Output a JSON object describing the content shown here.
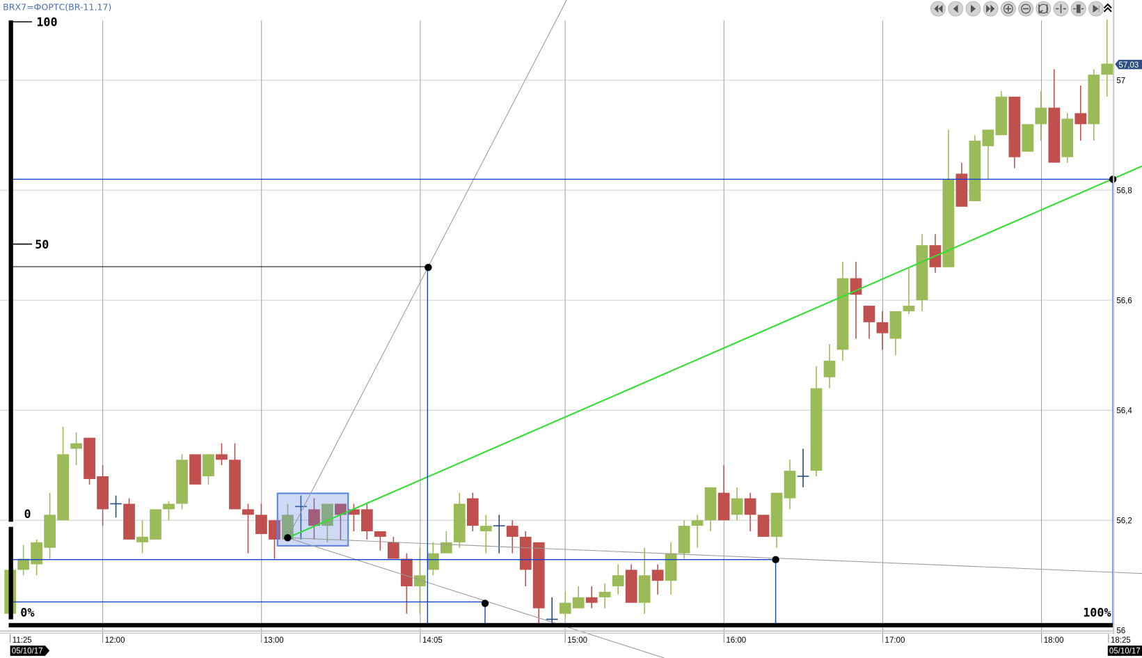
{
  "title": "BRX7=ФОРТС(BR-11.17)",
  "toolbar": {
    "buttons": [
      "rewind-start",
      "step-back",
      "step-forward",
      "fast-forward",
      "zoom-in",
      "zoom-out",
      "zoom-fit",
      "compress",
      "expand",
      "go-to-end"
    ],
    "collapse_icon": "double-chevron-up"
  },
  "overlay_scale": {
    "top_label": "100",
    "mid_label": "50",
    "zero_label": "0",
    "left_pct": "0%",
    "right_pct": "100%"
  },
  "last_price_badge": "57,03",
  "colors": {
    "up": "#9bbb59",
    "down": "#c0504d",
    "doji": "#1f497d",
    "trendline": "#33dd33",
    "level_lines": "#1040d0"
  },
  "date_left": "05/10/17",
  "date_right": "05/10/17",
  "chart_data": {
    "type": "candlestick",
    "title": "",
    "ylim": [
      56,
      57.12
    ],
    "y_ticks": [
      "57",
      "56,8",
      "56,6",
      "56,4",
      "56,2",
      "56"
    ],
    "y_tick_values": [
      57,
      56.8,
      56.6,
      56.4,
      56.2,
      56
    ],
    "x_ticks": [
      "11:25",
      "12:00",
      "13:00",
      "14:05",
      "15:00",
      "16:00",
      "17:00",
      "18:00",
      "18:25"
    ],
    "grid": true,
    "candles": [
      [
        56.03,
        56.12,
        56.02,
        56.11
      ],
      [
        56.11,
        56.155,
        56.1,
        56.13
      ],
      [
        56.12,
        56.165,
        56.1,
        56.16
      ],
      [
        56.15,
        56.25,
        56.13,
        56.21
      ],
      [
        56.2,
        56.37,
        56.2,
        56.32
      ],
      [
        56.33,
        56.36,
        56.3,
        56.34
      ],
      [
        56.35,
        56.35,
        56.265,
        56.275
      ],
      [
        56.28,
        56.3,
        56.19,
        56.22
      ],
      [
        56.23,
        56.245,
        56.205,
        56.23
      ],
      [
        56.23,
        56.24,
        56.165,
        56.165
      ],
      [
        56.16,
        56.2,
        56.14,
        56.17
      ],
      [
        56.165,
        56.22,
        56.165,
        56.22
      ],
      [
        56.22,
        56.235,
        56.2,
        56.23
      ],
      [
        56.23,
        56.32,
        56.22,
        56.31
      ],
      [
        56.32,
        56.32,
        56.265,
        56.265
      ],
      [
        56.28,
        56.32,
        56.265,
        56.32
      ],
      [
        56.32,
        56.34,
        56.3,
        56.31
      ],
      [
        56.31,
        56.34,
        56.22,
        56.22
      ],
      [
        56.22,
        56.23,
        56.14,
        56.21
      ],
      [
        56.21,
        56.23,
        56.175,
        56.175
      ],
      [
        56.2,
        56.2,
        56.13,
        56.165
      ],
      [
        56.165,
        56.23,
        56.165,
        56.21
      ],
      [
        56.225,
        56.245,
        56.165,
        56.225
      ],
      [
        56.22,
        56.24,
        56.165,
        56.19
      ],
      [
        56.19,
        56.23,
        56.16,
        56.23
      ],
      [
        56.23,
        56.23,
        56.165,
        56.21
      ],
      [
        56.22,
        56.23,
        56.18,
        56.21
      ],
      [
        56.22,
        56.23,
        56.165,
        56.18
      ],
      [
        56.18,
        56.18,
        56.145,
        56.17
      ],
      [
        56.16,
        56.17,
        56.13,
        56.13
      ],
      [
        56.13,
        56.14,
        56.03,
        56.08
      ],
      [
        56.08,
        56.15,
        56.03,
        56.1
      ],
      [
        56.11,
        56.16,
        56.1,
        56.14
      ],
      [
        56.14,
        56.18,
        56.14,
        56.16
      ],
      [
        56.16,
        56.25,
        56.15,
        56.23
      ],
      [
        56.24,
        56.25,
        56.18,
        56.19
      ],
      [
        56.18,
        56.21,
        56.14,
        56.19
      ],
      [
        56.19,
        56.21,
        56.14,
        56.19
      ],
      [
        56.19,
        56.2,
        56.14,
        56.17
      ],
      [
        56.17,
        56.18,
        56.08,
        56.11
      ],
      [
        56.16,
        56.16,
        56.013,
        56.04
      ],
      [
        56.02,
        56.06,
        56.01,
        56.02
      ],
      [
        56.03,
        56.07,
        56.02,
        56.05
      ],
      [
        56.04,
        56.08,
        56.04,
        56.06
      ],
      [
        56.06,
        56.08,
        56.04,
        56.05
      ],
      [
        56.06,
        56.085,
        56.04,
        56.07
      ],
      [
        56.08,
        56.12,
        56.065,
        56.1
      ],
      [
        56.11,
        56.12,
        56.05,
        56.05
      ],
      [
        56.05,
        56.15,
        56.03,
        56.1
      ],
      [
        56.11,
        56.12,
        56.065,
        56.09
      ],
      [
        56.09,
        56.16,
        56.065,
        56.14
      ],
      [
        56.14,
        56.2,
        56.13,
        56.19
      ],
      [
        56.19,
        56.21,
        56.15,
        56.2
      ],
      [
        56.2,
        56.26,
        56.18,
        56.26
      ],
      [
        56.25,
        56.3,
        56.2,
        56.2
      ],
      [
        56.21,
        56.26,
        56.2,
        56.24
      ],
      [
        56.24,
        56.25,
        56.18,
        56.21
      ],
      [
        56.21,
        56.21,
        56.17,
        56.17
      ],
      [
        56.17,
        56.25,
        56.15,
        56.25
      ],
      [
        56.24,
        56.31,
        56.22,
        56.29
      ],
      [
        56.28,
        56.33,
        56.26,
        56.28
      ],
      [
        56.29,
        56.48,
        56.28,
        56.44
      ],
      [
        56.46,
        56.52,
        56.44,
        56.49
      ],
      [
        56.51,
        56.67,
        56.49,
        56.64
      ],
      [
        56.64,
        56.67,
        56.53,
        56.61
      ],
      [
        56.59,
        56.59,
        56.53,
        56.56
      ],
      [
        56.56,
        56.58,
        56.51,
        56.54
      ],
      [
        56.53,
        56.58,
        56.5,
        56.58
      ],
      [
        56.58,
        56.66,
        56.575,
        56.59
      ],
      [
        56.6,
        56.72,
        56.58,
        56.7
      ],
      [
        56.7,
        56.72,
        56.65,
        56.66
      ],
      [
        56.66,
        56.91,
        56.66,
        56.82
      ],
      [
        56.83,
        56.85,
        56.77,
        56.77
      ],
      [
        56.78,
        56.9,
        56.78,
        56.89
      ],
      [
        56.88,
        56.91,
        56.82,
        56.91
      ],
      [
        56.9,
        56.98,
        56.9,
        56.97
      ],
      [
        56.97,
        56.97,
        56.84,
        56.86
      ],
      [
        56.87,
        56.92,
        56.87,
        56.92
      ],
      [
        56.92,
        56.98,
        56.89,
        56.95
      ],
      [
        56.95,
        57.02,
        56.85,
        56.85
      ],
      [
        56.86,
        56.94,
        56.85,
        56.93
      ],
      [
        56.94,
        56.99,
        56.89,
        56.92
      ],
      [
        56.92,
        57.02,
        56.89,
        57.01
      ],
      [
        57.01,
        57.11,
        56.97,
        57.03
      ]
    ],
    "candle_fields": [
      "open",
      "high",
      "low",
      "close"
    ],
    "last_price": 57.03
  }
}
